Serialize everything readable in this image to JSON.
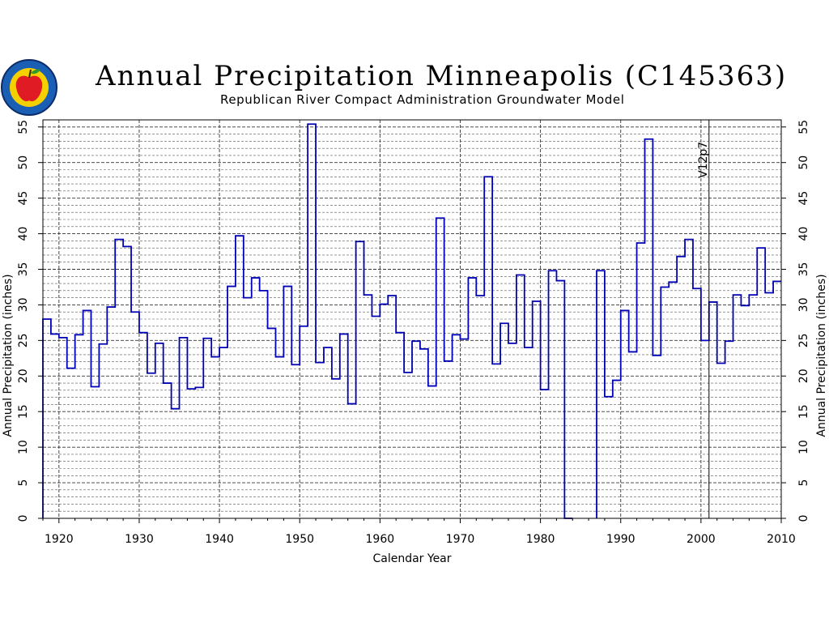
{
  "chart_data": {
    "type": "line",
    "step": true,
    "title": "Annual Precipitation Minneapolis (C145363)",
    "subtitle": "Republican River Compact Administration Groundwater Model",
    "xlabel": "Calendar Year",
    "ylabel": "Annual Precipitation (inches)",
    "ylabel_right": "Annual Precipitation (inches)",
    "xlim": [
      1918,
      2010
    ],
    "ylim": [
      0,
      56
    ],
    "x_ticks": [
      "1920",
      "1930",
      "1940",
      "1950",
      "1960",
      "1970",
      "1980",
      "1990",
      "2000",
      "2010"
    ],
    "y_ticks": [
      "0",
      "5",
      "10",
      "15",
      "20",
      "25",
      "30",
      "35",
      "40",
      "45",
      "50",
      "55"
    ],
    "grid": true,
    "marker": {
      "x": 2001,
      "label": "V12p7"
    },
    "series": [
      {
        "color": "#0000b4",
        "segments": [
          {
            "x": [
              1918,
              1919,
              1920,
              1921,
              1922,
              1923,
              1924,
              1925,
              1926,
              1927,
              1928,
              1929,
              1930,
              1931,
              1932,
              1933,
              1934,
              1935,
              1936,
              1937,
              1938,
              1939,
              1940,
              1941,
              1942,
              1943,
              1944,
              1945,
              1946,
              1947,
              1948,
              1949,
              1950,
              1951,
              1952,
              1953,
              1954,
              1955,
              1956,
              1957,
              1958,
              1959,
              1960,
              1961,
              1962,
              1963,
              1964,
              1965,
              1966,
              1967,
              1968,
              1969,
              1970,
              1971,
              1972,
              1973,
              1974,
              1975,
              1976,
              1977,
              1978,
              1979,
              1980,
              1981,
              1982,
              1983
            ],
            "y": [
              28.0,
              25.9,
              25.4,
              21.1,
              25.8,
              29.2,
              18.5,
              24.5,
              29.7,
              39.2,
              38.2,
              29.0,
              26.1,
              20.4,
              24.6,
              19.0,
              15.4,
              25.4,
              18.2,
              18.4,
              25.3,
              22.7,
              24.0,
              32.6,
              39.7,
              31.0,
              33.8,
              32.0,
              26.7,
              22.7,
              32.6,
              21.6,
              27.0,
              55.4,
              21.9,
              24.0,
              19.6,
              25.9,
              16.1,
              38.9,
              31.4,
              28.4,
              30.1,
              31.3,
              26.1,
              20.5,
              24.9,
              23.8,
              18.6,
              42.2,
              22.1,
              25.8,
              25.2,
              33.8,
              31.3,
              48.0,
              21.7,
              27.4,
              24.6,
              34.2,
              24.0,
              30.5,
              18.1,
              34.8,
              33.4,
              0.0
            ]
          },
          {
            "x": [
              1987,
              1988,
              1989,
              1990,
              1991,
              1992,
              1993,
              1994,
              1995,
              1996,
              1997,
              1998,
              1999,
              2000,
              2001,
              2002,
              2003,
              2004,
              2005,
              2006,
              2007,
              2008,
              2009
            ],
            "y": [
              34.8,
              17.1,
              19.4,
              29.2,
              23.4,
              38.7,
              53.3,
              22.9,
              32.5,
              33.2,
              36.8,
              39.2,
              32.3,
              25.0,
              30.4,
              21.8,
              24.9,
              31.4,
              29.9,
              31.4,
              38.0,
              31.7,
              33.3
            ]
          }
        ]
      }
    ]
  }
}
